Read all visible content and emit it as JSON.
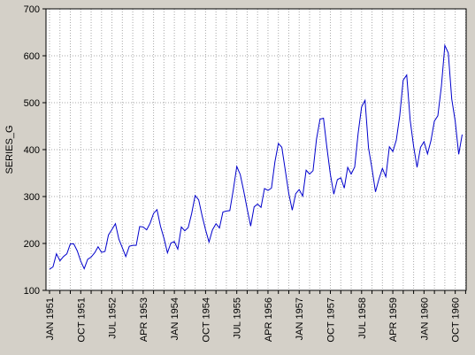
{
  "chart_data": {
    "type": "line",
    "title": "",
    "xlabel": "",
    "ylabel": "SERIES_G",
    "ylim": [
      100,
      700
    ],
    "yticks": [
      100,
      200,
      300,
      400,
      500,
      600,
      700
    ],
    "xlim": [
      "JAN 1951",
      "APR 1961"
    ],
    "grid": true,
    "xtick_labels": [
      "JAN 1951",
      "OCT 1951",
      "JUL 1952",
      "APR 1953",
      "JAN 1954",
      "OCT 1954",
      "JUL 1955",
      "APR 1956",
      "JAN 1957",
      "OCT 1957",
      "JUL 1958",
      "APR 1959",
      "JAN 1960",
      "OCT 1960"
    ],
    "series": [
      {
        "color": "#0000cc",
        "start": "JAN 1951",
        "frequency": "monthly",
        "values": [
          145,
          150,
          178,
          163,
          172,
          178,
          199,
          199,
          184,
          162,
          146,
          166,
          171,
          180,
          193,
          181,
          183,
          218,
          230,
          242,
          209,
          191,
          172,
          194,
          196,
          196,
          236,
          235,
          229,
          243,
          264,
          272,
          237,
          211,
          180,
          201,
          204,
          188,
          235,
          227,
          234,
          264,
          302,
          293,
          259,
          229,
          203,
          229,
          242,
          233,
          267,
          269,
          270,
          315,
          364,
          347,
          312,
          274,
          237,
          278,
          284,
          277,
          317,
          313,
          318,
          374,
          413,
          405,
          355,
          306,
          271,
          306,
          315,
          301,
          356,
          348,
          355,
          422,
          465,
          467,
          404,
          347,
          305,
          336,
          340,
          318,
          362,
          348,
          363,
          435,
          491,
          505,
          404,
          359,
          310,
          337,
          360,
          342,
          406,
          396,
          420,
          472,
          548,
          559,
          463,
          407,
          362,
          405,
          417,
          391,
          419,
          461,
          472,
          535,
          622,
          606,
          508,
          461,
          390,
          432
        ]
      }
    ]
  }
}
